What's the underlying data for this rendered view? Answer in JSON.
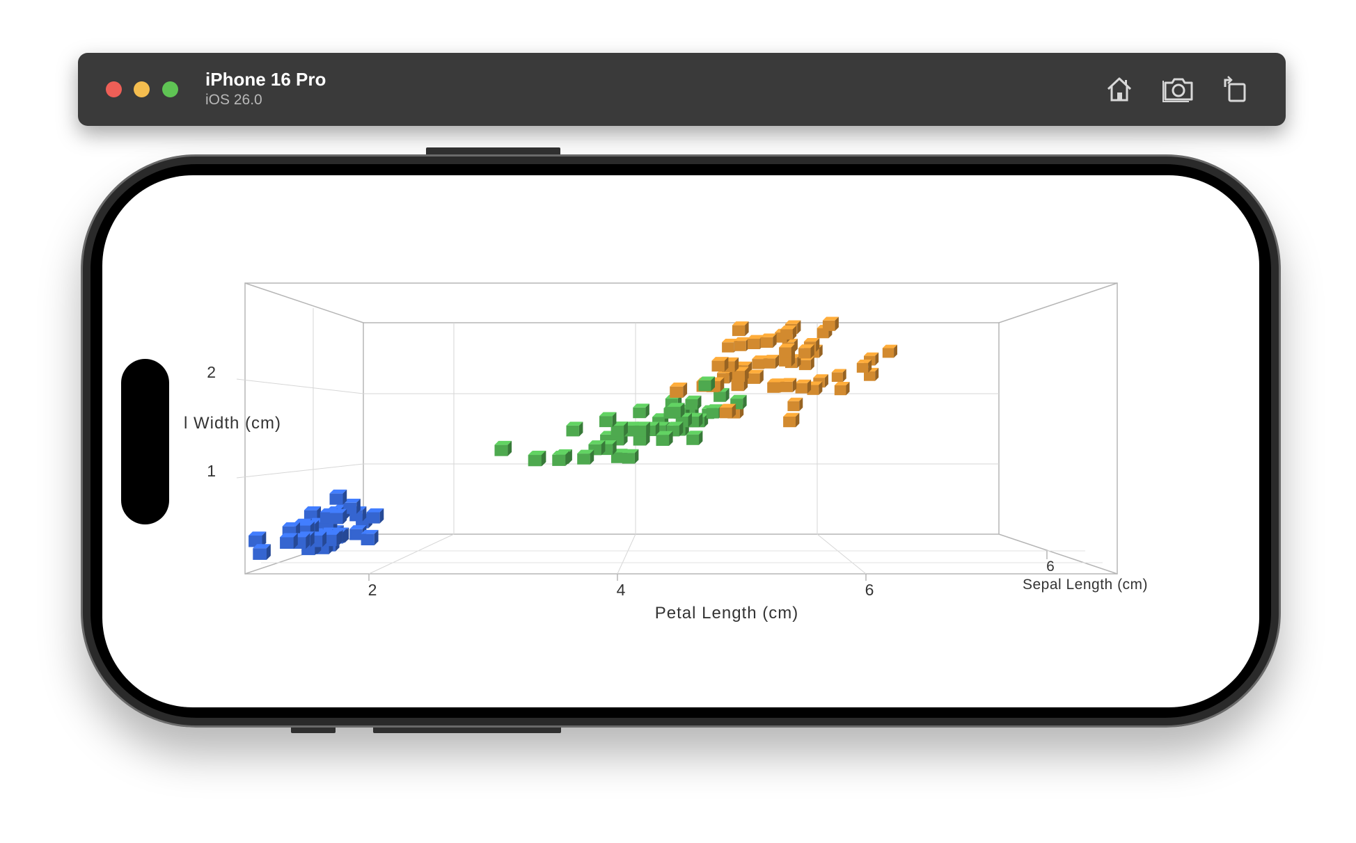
{
  "window": {
    "device_name": "iPhone 16 Pro",
    "os_version": "iOS 26.0",
    "toolbar": [
      {
        "name": "home-button",
        "icon": "home-icon"
      },
      {
        "name": "screenshot-button",
        "icon": "camera-icon"
      },
      {
        "name": "rotate-button",
        "icon": "rotate-icon"
      }
    ]
  },
  "colors": {
    "setosa": "#3565d0",
    "versicolor": "#4ea94f",
    "virginica": "#d28a2f",
    "grid": "#cfcfcf",
    "frame": "#b5b5b5"
  },
  "chart_data": {
    "type": "scatter",
    "projection": "3d",
    "xlabel": "Petal Length (cm)",
    "ylabel": "l Width (cm)",
    "zlabel": "Sepal Length (cm)",
    "x_ticks": [
      "2",
      "4",
      "6"
    ],
    "y_ticks": [
      "2",
      "1"
    ],
    "z_ticks": [
      "6"
    ],
    "xlim": [
      1,
      7
    ],
    "ylim": [
      0,
      2.5
    ],
    "zlim": [
      4,
      8
    ],
    "series": [
      {
        "key": "setosa",
        "marker": "cube",
        "points": [
          [
            1.4,
            0.2,
            5.1
          ],
          [
            1.4,
            0.2,
            4.9
          ],
          [
            1.3,
            0.2,
            4.7
          ],
          [
            1.5,
            0.2,
            4.6
          ],
          [
            1.4,
            0.2,
            5.0
          ],
          [
            1.7,
            0.4,
            5.4
          ],
          [
            1.4,
            0.3,
            4.6
          ],
          [
            1.5,
            0.2,
            5.0
          ],
          [
            1.4,
            0.2,
            4.4
          ],
          [
            1.5,
            0.1,
            4.9
          ],
          [
            1.5,
            0.2,
            5.4
          ],
          [
            1.6,
            0.2,
            4.8
          ],
          [
            1.4,
            0.1,
            4.8
          ],
          [
            1.1,
            0.1,
            4.3
          ],
          [
            1.2,
            0.2,
            5.8
          ],
          [
            1.5,
            0.4,
            5.7
          ],
          [
            1.3,
            0.4,
            5.4
          ],
          [
            1.4,
            0.3,
            5.1
          ],
          [
            1.7,
            0.3,
            5.7
          ],
          [
            1.5,
            0.3,
            5.1
          ],
          [
            1.7,
            0.2,
            5.4
          ],
          [
            1.5,
            0.4,
            5.1
          ],
          [
            1.0,
            0.2,
            4.6
          ],
          [
            1.7,
            0.5,
            5.1
          ],
          [
            1.9,
            0.2,
            4.8
          ],
          [
            1.6,
            0.2,
            5.0
          ],
          [
            1.6,
            0.4,
            5.0
          ],
          [
            1.5,
            0.2,
            5.2
          ],
          [
            1.4,
            0.2,
            5.2
          ],
          [
            1.6,
            0.2,
            4.7
          ],
          [
            1.6,
            0.2,
            4.8
          ],
          [
            1.5,
            0.4,
            5.4
          ],
          [
            1.5,
            0.1,
            5.2
          ],
          [
            1.4,
            0.2,
            5.5
          ],
          [
            1.5,
            0.2,
            4.9
          ],
          [
            1.2,
            0.2,
            5.0
          ],
          [
            1.3,
            0.2,
            5.5
          ],
          [
            1.4,
            0.1,
            4.9
          ],
          [
            1.3,
            0.2,
            4.4
          ],
          [
            1.5,
            0.2,
            5.1
          ],
          [
            1.3,
            0.3,
            5.0
          ],
          [
            1.3,
            0.3,
            4.5
          ],
          [
            1.3,
            0.2,
            4.4
          ],
          [
            1.6,
            0.6,
            5.0
          ],
          [
            1.9,
            0.4,
            5.1
          ],
          [
            1.4,
            0.3,
            4.8
          ],
          [
            1.6,
            0.2,
            5.1
          ],
          [
            1.4,
            0.2,
            4.6
          ],
          [
            1.5,
            0.2,
            5.3
          ],
          [
            1.4,
            0.2,
            5.0
          ]
        ]
      },
      {
        "key": "versicolor",
        "marker": "cube",
        "points": [
          [
            4.7,
            1.4,
            7.0
          ],
          [
            4.5,
            1.5,
            6.4
          ],
          [
            4.9,
            1.5,
            6.9
          ],
          [
            4.0,
            1.3,
            5.5
          ],
          [
            4.6,
            1.5,
            6.5
          ],
          [
            4.5,
            1.3,
            5.7
          ],
          [
            4.7,
            1.6,
            6.3
          ],
          [
            3.3,
            1.0,
            4.9
          ],
          [
            4.6,
            1.3,
            6.6
          ],
          [
            3.9,
            1.4,
            5.2
          ],
          [
            3.5,
            1.0,
            5.0
          ],
          [
            4.2,
            1.5,
            5.9
          ],
          [
            4.0,
            1.0,
            6.0
          ],
          [
            4.7,
            1.4,
            6.1
          ],
          [
            3.6,
            1.3,
            5.6
          ],
          [
            4.4,
            1.4,
            6.7
          ],
          [
            4.5,
            1.5,
            5.6
          ],
          [
            4.1,
            1.0,
            5.8
          ],
          [
            4.5,
            1.5,
            6.2
          ],
          [
            3.9,
            1.1,
            5.6
          ],
          [
            4.8,
            1.8,
            5.9
          ],
          [
            4.0,
            1.3,
            6.1
          ],
          [
            4.9,
            1.5,
            6.3
          ],
          [
            4.7,
            1.2,
            6.1
          ],
          [
            4.3,
            1.3,
            6.4
          ],
          [
            4.4,
            1.4,
            6.6
          ],
          [
            4.8,
            1.4,
            6.8
          ],
          [
            5.0,
            1.7,
            6.7
          ],
          [
            4.5,
            1.5,
            6.0
          ],
          [
            3.5,
            1.0,
            5.7
          ],
          [
            3.8,
            1.1,
            5.5
          ],
          [
            3.7,
            1.0,
            5.5
          ],
          [
            3.9,
            1.2,
            5.8
          ],
          [
            5.1,
            1.6,
            6.0
          ],
          [
            4.5,
            1.5,
            5.4
          ],
          [
            4.5,
            1.6,
            6.0
          ],
          [
            4.7,
            1.5,
            6.7
          ],
          [
            4.4,
            1.3,
            6.3
          ],
          [
            4.1,
            1.3,
            5.6
          ],
          [
            4.0,
            1.3,
            5.5
          ],
          [
            4.4,
            1.2,
            5.5
          ],
          [
            4.6,
            1.4,
            6.1
          ],
          [
            4.0,
            1.2,
            5.8
          ],
          [
            3.3,
            1.0,
            5.0
          ],
          [
            4.2,
            1.3,
            5.6
          ],
          [
            4.2,
            1.2,
            5.7
          ],
          [
            4.2,
            1.3,
            5.7
          ],
          [
            4.3,
            1.3,
            6.2
          ],
          [
            3.0,
            1.1,
            5.1
          ],
          [
            4.1,
            1.3,
            5.7
          ]
        ]
      },
      {
        "key": "virginica",
        "marker": "cube",
        "points": [
          [
            6.0,
            2.5,
            6.3
          ],
          [
            5.1,
            1.9,
            5.8
          ],
          [
            5.9,
            2.1,
            7.1
          ],
          [
            5.6,
            1.8,
            6.3
          ],
          [
            5.8,
            2.2,
            6.5
          ],
          [
            6.6,
            2.1,
            7.6
          ],
          [
            4.5,
            1.7,
            4.9
          ],
          [
            6.3,
            1.8,
            7.3
          ],
          [
            5.8,
            1.8,
            6.7
          ],
          [
            6.1,
            2.5,
            7.2
          ],
          [
            5.1,
            2.0,
            6.5
          ],
          [
            5.3,
            1.9,
            6.4
          ],
          [
            5.5,
            2.1,
            6.8
          ],
          [
            5.0,
            2.0,
            5.7
          ],
          [
            5.1,
            2.4,
            5.8
          ],
          [
            5.3,
            2.3,
            6.4
          ],
          [
            5.5,
            1.8,
            6.5
          ],
          [
            6.7,
            2.2,
            7.7
          ],
          [
            6.9,
            2.3,
            7.7
          ],
          [
            5.0,
            1.5,
            6.0
          ],
          [
            5.7,
            2.3,
            6.9
          ],
          [
            4.9,
            2.0,
            5.6
          ],
          [
            6.7,
            2.0,
            7.7
          ],
          [
            4.9,
            1.8,
            6.3
          ],
          [
            5.7,
            2.1,
            6.7
          ],
          [
            6.0,
            1.8,
            7.2
          ],
          [
            4.8,
            1.8,
            6.2
          ],
          [
            4.9,
            1.8,
            6.1
          ],
          [
            5.6,
            2.1,
            6.4
          ],
          [
            5.8,
            1.6,
            7.2
          ],
          [
            6.1,
            1.9,
            7.4
          ],
          [
            6.4,
            2.0,
            7.9
          ],
          [
            5.6,
            2.2,
            6.4
          ],
          [
            5.1,
            1.5,
            6.3
          ],
          [
            5.6,
            1.4,
            6.1
          ],
          [
            6.1,
            2.3,
            7.7
          ],
          [
            5.6,
            2.4,
            6.3
          ],
          [
            5.5,
            1.8,
            6.4
          ],
          [
            4.8,
            1.8,
            6.0
          ],
          [
            5.4,
            2.1,
            6.9
          ],
          [
            5.6,
            2.4,
            6.7
          ],
          [
            5.1,
            2.3,
            6.9
          ],
          [
            5.1,
            1.9,
            5.8
          ],
          [
            5.9,
            2.3,
            6.8
          ],
          [
            5.7,
            2.5,
            6.7
          ],
          [
            5.2,
            2.3,
            6.7
          ],
          [
            5.0,
            1.9,
            6.3
          ],
          [
            5.2,
            2.0,
            6.5
          ],
          [
            5.4,
            2.3,
            6.2
          ],
          [
            5.1,
            1.8,
            5.9
          ]
        ]
      }
    ]
  }
}
